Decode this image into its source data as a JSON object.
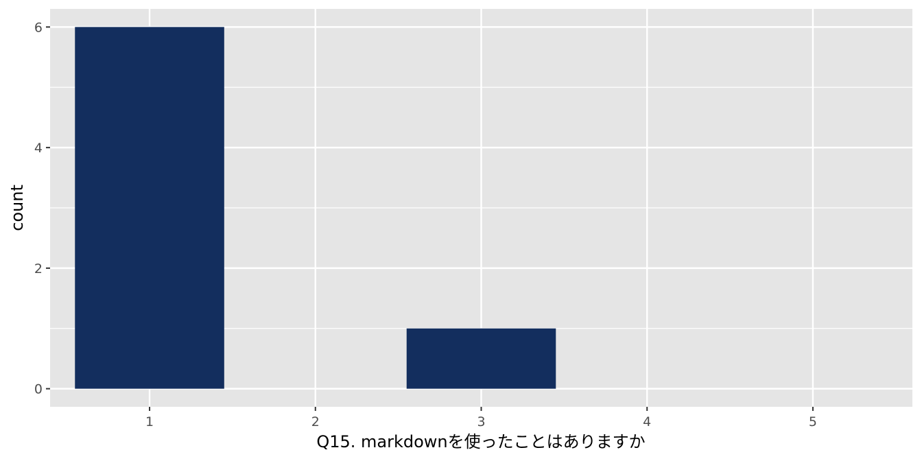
{
  "chart_data": {
    "type": "bar",
    "x": [
      1,
      3
    ],
    "values": [
      6,
      1
    ],
    "xlabel": "Q15. markdownを使ったことはありますか",
    "ylabel": "count",
    "xlim": [
      0.4,
      5.6
    ],
    "ylim": [
      -0.3,
      6.3
    ],
    "xticks": [
      1,
      2,
      3,
      4,
      5
    ],
    "yticks": [
      0,
      2,
      4,
      6
    ],
    "y_minor_ticks": [
      1,
      3,
      5
    ],
    "bar_width": 0.9,
    "grid": true,
    "legend": "none",
    "colors": {
      "bar": "#132e5e",
      "panel": "#e5e5e5",
      "grid": "#ffffff",
      "tick_text": "#4d4d4d",
      "tick_mark": "#333333"
    }
  }
}
